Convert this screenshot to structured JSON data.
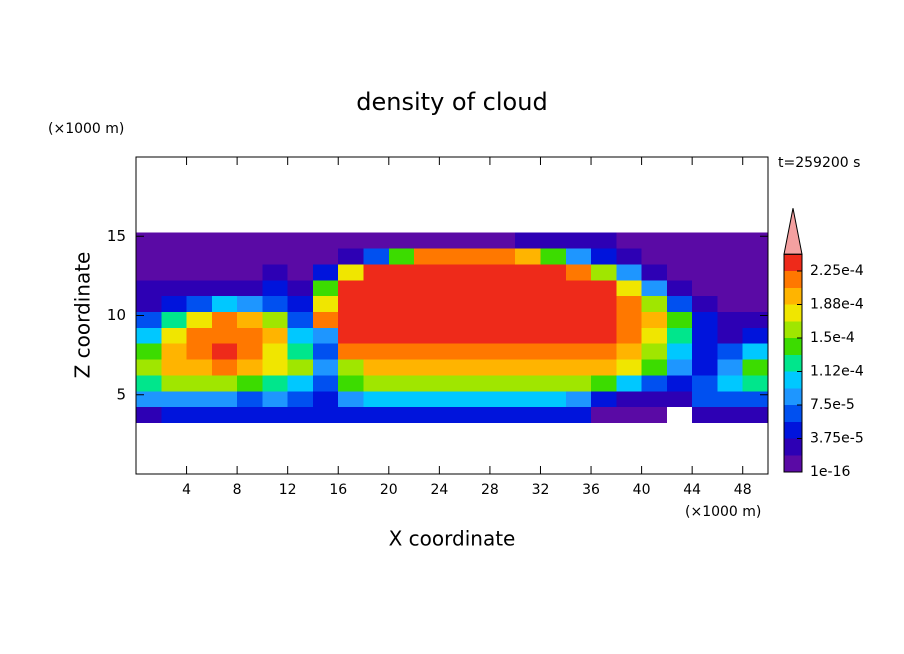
{
  "chart_data": {
    "type": "contour",
    "title": "density of cloud",
    "time_label": "t=259200 s",
    "x_label": "X coordinate",
    "y_label": "Z coordinate",
    "x_unit": "(×1000 m)",
    "y_unit": "(×1000 m)",
    "xlim": [
      0,
      50
    ],
    "ylim": [
      0,
      20
    ],
    "xticks": [
      4,
      8,
      12,
      16,
      20,
      24,
      28,
      32,
      36,
      40,
      44,
      48
    ],
    "yticks": [
      5,
      10,
      15
    ],
    "x": [
      1,
      3,
      5,
      7,
      9,
      11,
      13,
      15,
      17,
      19,
      21,
      23,
      25,
      27,
      29,
      31,
      33,
      35,
      37,
      39,
      41,
      43,
      45,
      47,
      49
    ],
    "z": [
      3.75,
      4.75,
      5.75,
      6.75,
      7.75,
      8.75,
      9.75,
      10.75,
      11.75,
      12.75,
      13.75,
      14.75
    ],
    "values": [
      [
        2.8e-05,
        4.7e-05,
        4.7e-05,
        4.7e-05,
        4.7e-05,
        4.7e-05,
        4.7e-05,
        4.7e-05,
        4.7e-05,
        4.7e-05,
        4.7e-05,
        4.7e-05,
        4.7e-05,
        4.7e-05,
        4.7e-05,
        4.7e-05,
        4.7e-05,
        4.7e-05,
        9e-06,
        9e-06,
        9e-06,
        0,
        2.8e-05,
        2.8e-05,
        2.8e-05
      ],
      [
        8.4e-05,
        8.4e-05,
        8.4e-05,
        8.4e-05,
        6.6e-05,
        8.4e-05,
        6.6e-05,
        4.7e-05,
        8.4e-05,
        0.000103,
        0.000103,
        0.000103,
        0.000103,
        0.000103,
        0.000103,
        0.000103,
        0.000103,
        8.4e-05,
        4.7e-05,
        2.8e-05,
        2.8e-05,
        2.8e-05,
        6.6e-05,
        6.6e-05,
        6.6e-05
      ],
      [
        0.000122,
        0.000159,
        0.000159,
        0.000159,
        0.000141,
        0.000122,
        0.000103,
        6.6e-05,
        0.000141,
        0.000159,
        0.000159,
        0.000159,
        0.000159,
        0.000159,
        0.000159,
        0.000159,
        0.000159,
        0.000159,
        0.000141,
        0.000103,
        6.6e-05,
        4.7e-05,
        6.6e-05,
        0.000103,
        0.000122
      ],
      [
        0.000159,
        0.000197,
        0.000197,
        0.000216,
        0.000197,
        0.000178,
        0.000159,
        8.4e-05,
        0.000159,
        0.000197,
        0.000197,
        0.000197,
        0.000197,
        0.000197,
        0.000197,
        0.000197,
        0.000197,
        0.000197,
        0.000197,
        0.000178,
        0.000141,
        8.4e-05,
        4.7e-05,
        8.4e-05,
        0.000141
      ],
      [
        0.000141,
        0.000197,
        0.000216,
        0.000235,
        0.000216,
        0.000178,
        0.000122,
        6.6e-05,
        0.000216,
        0.000216,
        0.000216,
        0.000216,
        0.000216,
        0.000216,
        0.000216,
        0.000216,
        0.000216,
        0.000216,
        0.000216,
        0.000197,
        0.000159,
        0.000103,
        4.7e-05,
        6.6e-05,
        0.000103
      ],
      [
        0.000103,
        0.000178,
        0.000216,
        0.000216,
        0.000216,
        0.000197,
        0.000103,
        8.4e-05,
        0.000235,
        0.000235,
        0.000235,
        0.000235,
        0.000235,
        0.000235,
        0.000235,
        0.000235,
        0.000235,
        0.000235,
        0.000235,
        0.000216,
        0.000178,
        0.000122,
        4.7e-05,
        2.8e-05,
        4.7e-05
      ],
      [
        6.6e-05,
        0.000122,
        0.000178,
        0.000216,
        0.000197,
        0.000159,
        6.6e-05,
        0.000216,
        0.000235,
        0.000235,
        0.000235,
        0.000235,
        0.000235,
        0.000235,
        0.000235,
        0.000235,
        0.000235,
        0.000235,
        0.000235,
        0.000216,
        0.000197,
        0.000141,
        4.7e-05,
        2.8e-05,
        2.8e-05
      ],
      [
        2.8e-05,
        4.7e-05,
        6.6e-05,
        0.000103,
        8.4e-05,
        6.6e-05,
        4.7e-05,
        0.000178,
        0.000235,
        0.000235,
        0.000235,
        0.000235,
        0.000235,
        0.000235,
        0.000235,
        0.000235,
        0.000235,
        0.000235,
        0.000235,
        0.000216,
        0.000159,
        6.6e-05,
        2.8e-05,
        9e-06,
        9e-06
      ],
      [
        2.8e-05,
        2.8e-05,
        2.8e-05,
        2.8e-05,
        2.8e-05,
        4.7e-05,
        2.8e-05,
        0.000141,
        0.000235,
        0.000235,
        0.000235,
        0.000235,
        0.000235,
        0.000235,
        0.000235,
        0.000235,
        0.000235,
        0.000235,
        0.000235,
        0.000178,
        8.4e-05,
        2.8e-05,
        9e-06,
        9e-06,
        9e-06
      ],
      [
        9e-06,
        9e-06,
        9e-06,
        9e-06,
        9e-06,
        2.8e-05,
        9e-06,
        4.7e-05,
        0.000178,
        0.000235,
        0.000235,
        0.000235,
        0.000235,
        0.000235,
        0.000235,
        0.000235,
        0.000235,
        0.000216,
        0.000159,
        8.4e-05,
        2.8e-05,
        9e-06,
        9e-06,
        9e-06,
        9e-06
      ],
      [
        9e-06,
        9e-06,
        9e-06,
        9e-06,
        9e-06,
        9e-06,
        9e-06,
        9e-06,
        2.8e-05,
        6.6e-05,
        0.000141,
        0.000216,
        0.000216,
        0.000216,
        0.000216,
        0.000197,
        0.000141,
        8.4e-05,
        4.7e-05,
        2.8e-05,
        9e-06,
        9e-06,
        9e-06,
        9e-06,
        9e-06
      ],
      [
        9e-06,
        9e-06,
        9e-06,
        9e-06,
        9e-06,
        9e-06,
        9e-06,
        9e-06,
        9e-06,
        9e-06,
        9e-06,
        9e-06,
        9e-06,
        9e-06,
        9e-06,
        2.8e-05,
        2.8e-05,
        2.8e-05,
        2.8e-05,
        9e-06,
        9e-06,
        9e-06,
        9e-06,
        9e-06,
        9e-06
      ]
    ],
    "levels": [
      1e-16,
      1.875e-05,
      3.75e-05,
      5.625e-05,
      7.5e-05,
      9.375e-05,
      0.0001125,
      0.00013125,
      0.00015,
      0.00016875,
      0.0001875,
      0.00020625,
      0.000225,
      0.00024375
    ],
    "colors": [
      "#5a0aa5",
      "#2d00b4",
      "#0014dc",
      "#0050f0",
      "#1e96ff",
      "#00c8ff",
      "#00e68c",
      "#3cdc00",
      "#a0e600",
      "#f0e600",
      "#ffb400",
      "#ff7800",
      "#ee2a1a",
      "#f4a0a0"
    ],
    "colorbar_ticks": [
      1e-16,
      {
        "value": 3.75e-05,
        "label": "3.75e-5"
      },
      {
        "value": 7.5e-05,
        "label": "7.5e-5"
      },
      {
        "value": 0.0001125,
        "label": "1.12e-4"
      },
      {
        "value": 0.00015,
        "label": "1.5e-4"
      },
      {
        "value": 0.0001875,
        "label": "1.88e-4"
      },
      {
        "value": 0.000225,
        "label": "2.25e-4"
      }
    ]
  }
}
